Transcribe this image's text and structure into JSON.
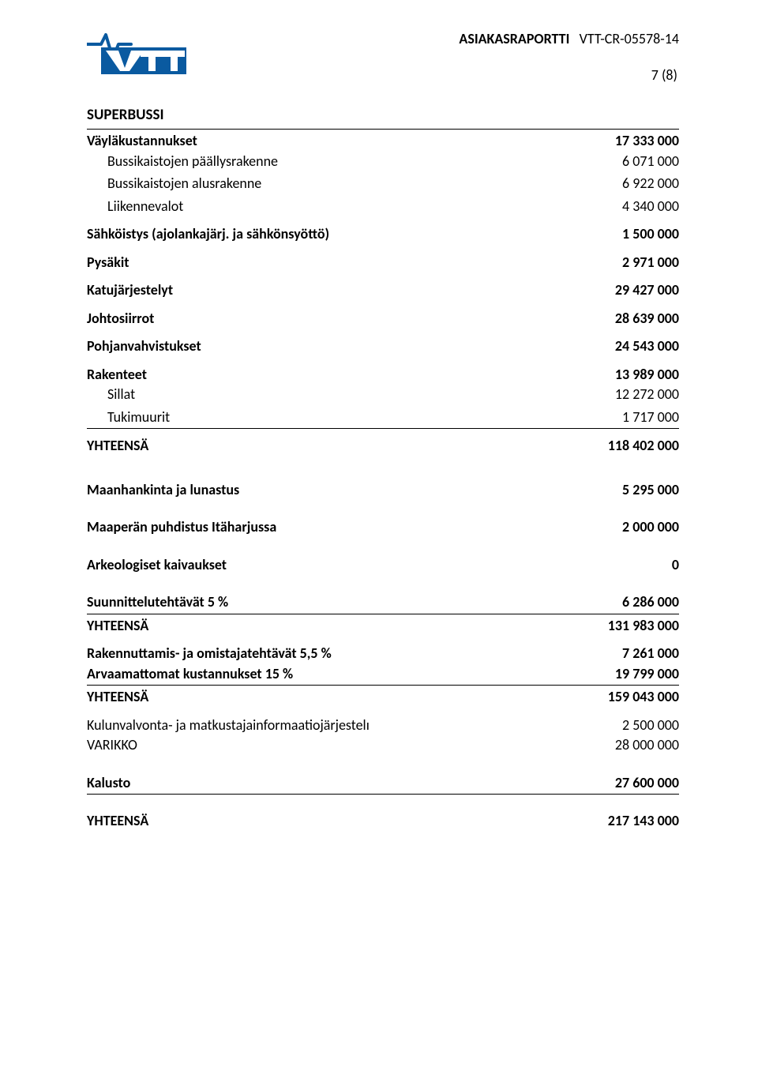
{
  "header": {
    "report_type_label": "ASIAKASRAPORTTI",
    "report_id": "VTT-CR-05578-14",
    "page_number": "7 (8)",
    "logo_color": "#0a5aa0"
  },
  "doc": {
    "section_title": "SUPERBUSSI",
    "rows": [
      {
        "label": "Väyläkustannukset",
        "value": "17 333 000",
        "bold": true,
        "border": true
      },
      {
        "label": "Bussikaistojen päällysrakenne",
        "value": "6 071 000",
        "indent": true,
        "tight": true
      },
      {
        "label": "Bussikaistojen alusrakenne",
        "value": "6 922 000",
        "indent": true
      },
      {
        "label": "Liikennevalot",
        "value": "4 340 000",
        "indent": true
      },
      {
        "label": "Sähköistys (ajolankajärj. ja sähkönsyöttö)",
        "value": "1 500 000",
        "bold": true,
        "gap": "sm"
      },
      {
        "label": "Pysäkit",
        "value": "2 971 000",
        "bold": true,
        "gap": "sm"
      },
      {
        "label": "Katujärjestelyt",
        "value": "29 427 000",
        "bold": true,
        "gap": "sm"
      },
      {
        "label": "Johtosiirrot",
        "value": "28 639 000",
        "bold": true,
        "gap": "sm"
      },
      {
        "label": "Pohjanvahvistukset",
        "value": "24 543 000",
        "bold": true,
        "gap": "sm"
      },
      {
        "label": "Rakenteet",
        "value": "13 989 000",
        "bold": true,
        "gap": "sm"
      },
      {
        "label": "Sillat",
        "value": "12 272 000",
        "indent": true,
        "tight": true
      },
      {
        "label": "Tukimuurit",
        "value": "1 717 000",
        "indent": true
      },
      {
        "label": "YHTEENSÄ",
        "value": "118 402 000",
        "bold": true,
        "border": true,
        "gap": "sm"
      },
      {
        "label": "Maanhankinta ja lunastus",
        "value": "5 295 000",
        "bold": true,
        "gap": "lg"
      },
      {
        "label": "Maaperän puhdistus Itäharjussa",
        "value": "2 000 000",
        "bold": true,
        "gap": "md"
      },
      {
        "label": "Arkeologiset kaivaukset",
        "value": "0",
        "bold": true,
        "gap": "md"
      },
      {
        "label": "Suunnittelutehtävät 5 %",
        "value": "6 286 000",
        "bold": true,
        "gap": "md"
      },
      {
        "label": "YHTEENSÄ",
        "value": "131 983 000",
        "bold": true,
        "border": true
      },
      {
        "label": "Rakennuttamis- ja omistajatehtävät 5,5 %",
        "value": "7 261 000",
        "bold": true,
        "gap": "sm"
      },
      {
        "label": "Arvaamattomat kustannukset 15 %",
        "value": "19 799 000",
        "bold": true,
        "tight": true
      },
      {
        "label": "YHTEENSÄ",
        "value": "159 043 000",
        "bold": true,
        "border": true
      },
      {
        "label": "Kulunvalvonta- ja matkustajainformaatiojärjestelı",
        "value": "2 500 000",
        "gap": "sm"
      },
      {
        "label": "VARIKKO",
        "value": "28 000 000",
        "tight": true
      },
      {
        "label": "Kalusto",
        "value": "27 600 000",
        "bold": true,
        "gap": "md"
      },
      {
        "label": "YHTEENSÄ",
        "value": "217 143 000",
        "bold": true,
        "border": true,
        "gap": "md"
      }
    ]
  }
}
